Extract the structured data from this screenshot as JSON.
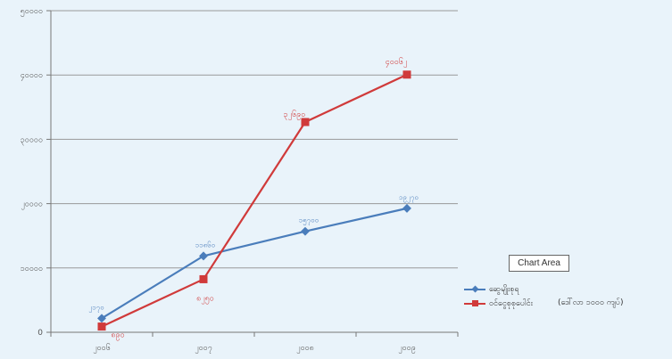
{
  "chart_data": {
    "type": "line",
    "x": [
      "၂၀၀၆",
      "၂၀၀၇",
      "၂၀၀၈",
      "၂၀၀၉"
    ],
    "y_ticks": [
      "0",
      "၁၀၀၀၀",
      "၂၀၀၀၀",
      "၃၀၀၀၀",
      "၄၀၀၀၀",
      "၅၀၀၀၀"
    ],
    "ylim": [
      0,
      50000
    ],
    "grid": true,
    "legend_position": "right",
    "series": [
      {
        "name": "ဆွေမျိုးစုရ",
        "color": "#4a7dbb",
        "marker": "diamond",
        "values": [
          2170,
          11860,
          15700,
          19270
        ],
        "labels": [
          "၂၁၇၀",
          "၁၁၈၆၀",
          "၁၅၇၀၀",
          "၁၉၂၇၀"
        ]
      },
      {
        "name": "ဝင်ငွေစုစုပေါင်း",
        "color": "#d03a3a",
        "marker": "square",
        "values": [
          890,
          8250,
          32690,
          40062
        ],
        "labels": [
          "၈၉၀",
          "၈၂၅၀",
          "၃၂၆၉၀",
          "၄၀၀၆၂"
        ]
      }
    ]
  },
  "chart_area_label": "Chart Area",
  "unit_note": "(ဒေါ်လာ ၁၀၀၀ ကျပ်)"
}
